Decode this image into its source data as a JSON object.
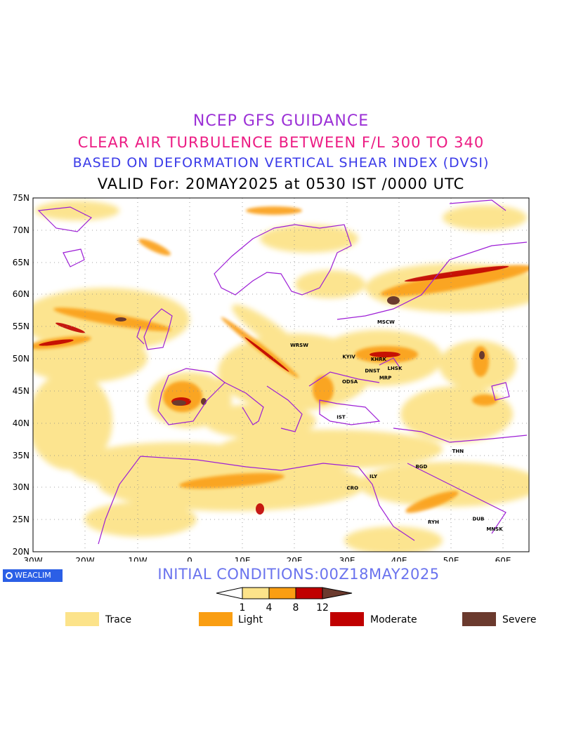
{
  "header": {
    "line1": "NCEP GFS GUIDANCE",
    "line2": "CLEAR AIR TURBULENCE BETWEEN F/L 300 TO 340",
    "line3": "BASED ON DEFORMATION VERTICAL SHEAR INDEX (DVSI)",
    "line4": "VALID For: 20MAY2025 at 0530 IST /0000 UTC"
  },
  "map": {
    "lat_labels": [
      "75N",
      "70N",
      "65N",
      "60N",
      "55N",
      "50N",
      "45N",
      "40N",
      "35N",
      "30N",
      "25N",
      "20N"
    ],
    "lon_labels": [
      "30W",
      "20W",
      "10W",
      "0",
      "10E",
      "20E",
      "30E",
      "40E",
      "50E",
      "60E"
    ],
    "cities": [
      {
        "name": "MSCW",
        "lon": 37.6,
        "lat": 55.8
      },
      {
        "name": "WRSW",
        "lon": 21.0,
        "lat": 52.2
      },
      {
        "name": "KYIV",
        "lon": 30.5,
        "lat": 50.4
      },
      {
        "name": "KHRK",
        "lon": 36.2,
        "lat": 50.0
      },
      {
        "name": "LHSK",
        "lon": 39.3,
        "lat": 48.6
      },
      {
        "name": "DNST",
        "lon": 35.0,
        "lat": 48.2
      },
      {
        "name": "ODSA",
        "lon": 30.7,
        "lat": 46.5
      },
      {
        "name": "MRP",
        "lon": 37.5,
        "lat": 47.1
      },
      {
        "name": "IST",
        "lon": 29.0,
        "lat": 41.0
      },
      {
        "name": "THN",
        "lon": 51.4,
        "lat": 35.7
      },
      {
        "name": "BGD",
        "lon": 44.4,
        "lat": 33.3
      },
      {
        "name": "ILY",
        "lon": 35.2,
        "lat": 31.8
      },
      {
        "name": "CRO",
        "lon": 31.2,
        "lat": 30.0
      },
      {
        "name": "MNSK",
        "lon": 58.4,
        "lat": 23.6
      },
      {
        "name": "DUB",
        "lon": 55.3,
        "lat": 25.2
      },
      {
        "name": "RYH",
        "lon": 46.7,
        "lat": 24.7
      }
    ],
    "turbulence_palette": {
      "trace": "#fce38a",
      "light": "#fa9e12",
      "moderate": "#c00000",
      "severe": "#6b3a2e"
    }
  },
  "footer": {
    "logo_text": "WEACLIM",
    "initial_conditions": "INITIAL CONDITIONS:00Z18MAY2025"
  },
  "scale": {
    "ticks": [
      "1",
      "4",
      "8",
      "12"
    ]
  },
  "legend": [
    {
      "label": "Trace",
      "color": "#fce38a"
    },
    {
      "label": "Light",
      "color": "#fa9e12"
    },
    {
      "label": "Moderate",
      "color": "#c00000"
    },
    {
      "label": "Severe",
      "color": "#6b3a2e"
    }
  ]
}
